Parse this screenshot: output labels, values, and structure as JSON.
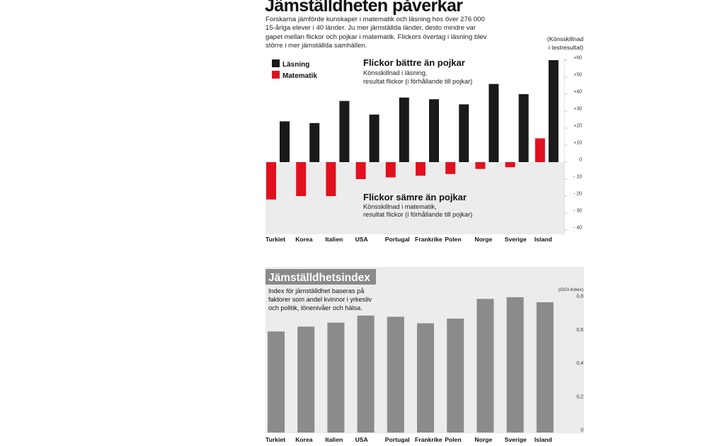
{
  "title": "Jämställdheten påverkar",
  "intro": "Forskarna jämförde kunskaper i matematik och läsning hos över 276 000 15-åriga elever i 40 länder. Ju mer jämställda länder, desto mindre var gapet mellan flickor och pojkar i matematik. Flickors övertag i läsning blev större i mer jämställda samhällen.",
  "colors": {
    "reading": "#1a1a1a",
    "math": "#e2101e",
    "index_bar": "#8b8b8b",
    "negative_band": "#ececec",
    "index_panel": "#ececec"
  },
  "chart_data": [
    {
      "type": "bar",
      "unit_label": [
        "(Könsskillnad",
        "i testresultat)"
      ],
      "categories": [
        "Turkiet",
        "Korea",
        "Italien",
        "USA",
        "Portugal",
        "Frankrike",
        "Polen",
        "Norge",
        "Sverige",
        "Island"
      ],
      "series": [
        {
          "name": "Läsning",
          "values": [
            24,
            23,
            36,
            28,
            38,
            37,
            34,
            46,
            40,
            60
          ]
        },
        {
          "name": "Matematik",
          "values": [
            -22,
            -20,
            -20,
            -10,
            -9,
            -8,
            -7,
            -4,
            -3,
            14
          ]
        }
      ],
      "ylim": [
        -40,
        60
      ],
      "yticks": [
        -40,
        -30,
        -20,
        -10,
        0,
        10,
        20,
        30,
        40,
        50,
        60
      ],
      "ytick_labels": [
        "- 40",
        "- 30",
        "- 20",
        "- 10",
        "0",
        "+10",
        "+20",
        "+30",
        "+40",
        "+50",
        "+60"
      ],
      "legend_position": "top-left",
      "annotations": [
        {
          "heading": "Flickor bättre än pojkar",
          "lines": [
            "Könsskillnad i läsning,",
            "resultat flickor (i förhållande till pojkar)"
          ]
        },
        {
          "heading": "Flickor sämre än pojkar",
          "lines": [
            "Könsskillnad i matematik,",
            "resultat flickor (i förhållande till pojkar)"
          ]
        }
      ]
    },
    {
      "type": "bar",
      "title": "Jämställdhetsindex",
      "description": [
        "Index för jämställdhet baseras på",
        "faktorer som andel kvinnor i yrkesliv",
        "och politik, lönenivåer och hälsa."
      ],
      "unit_label": "(GGI-index)",
      "categories": [
        "Turkiet",
        "Korea",
        "Italien",
        "USA",
        "Portugal",
        "Frankrike",
        "Polen",
        "Norge",
        "Sverige",
        "Island"
      ],
      "values": [
        0.605,
        0.634,
        0.658,
        0.7,
        0.693,
        0.654,
        0.682,
        0.8,
        0.81,
        0.78
      ],
      "ylim": [
        0,
        0.8
      ],
      "yticks": [
        0,
        0.2,
        0.4,
        0.6,
        0.8
      ],
      "ytick_labels": [
        "0",
        "0,2",
        "0,4",
        "0,6",
        "0,8"
      ]
    }
  ]
}
